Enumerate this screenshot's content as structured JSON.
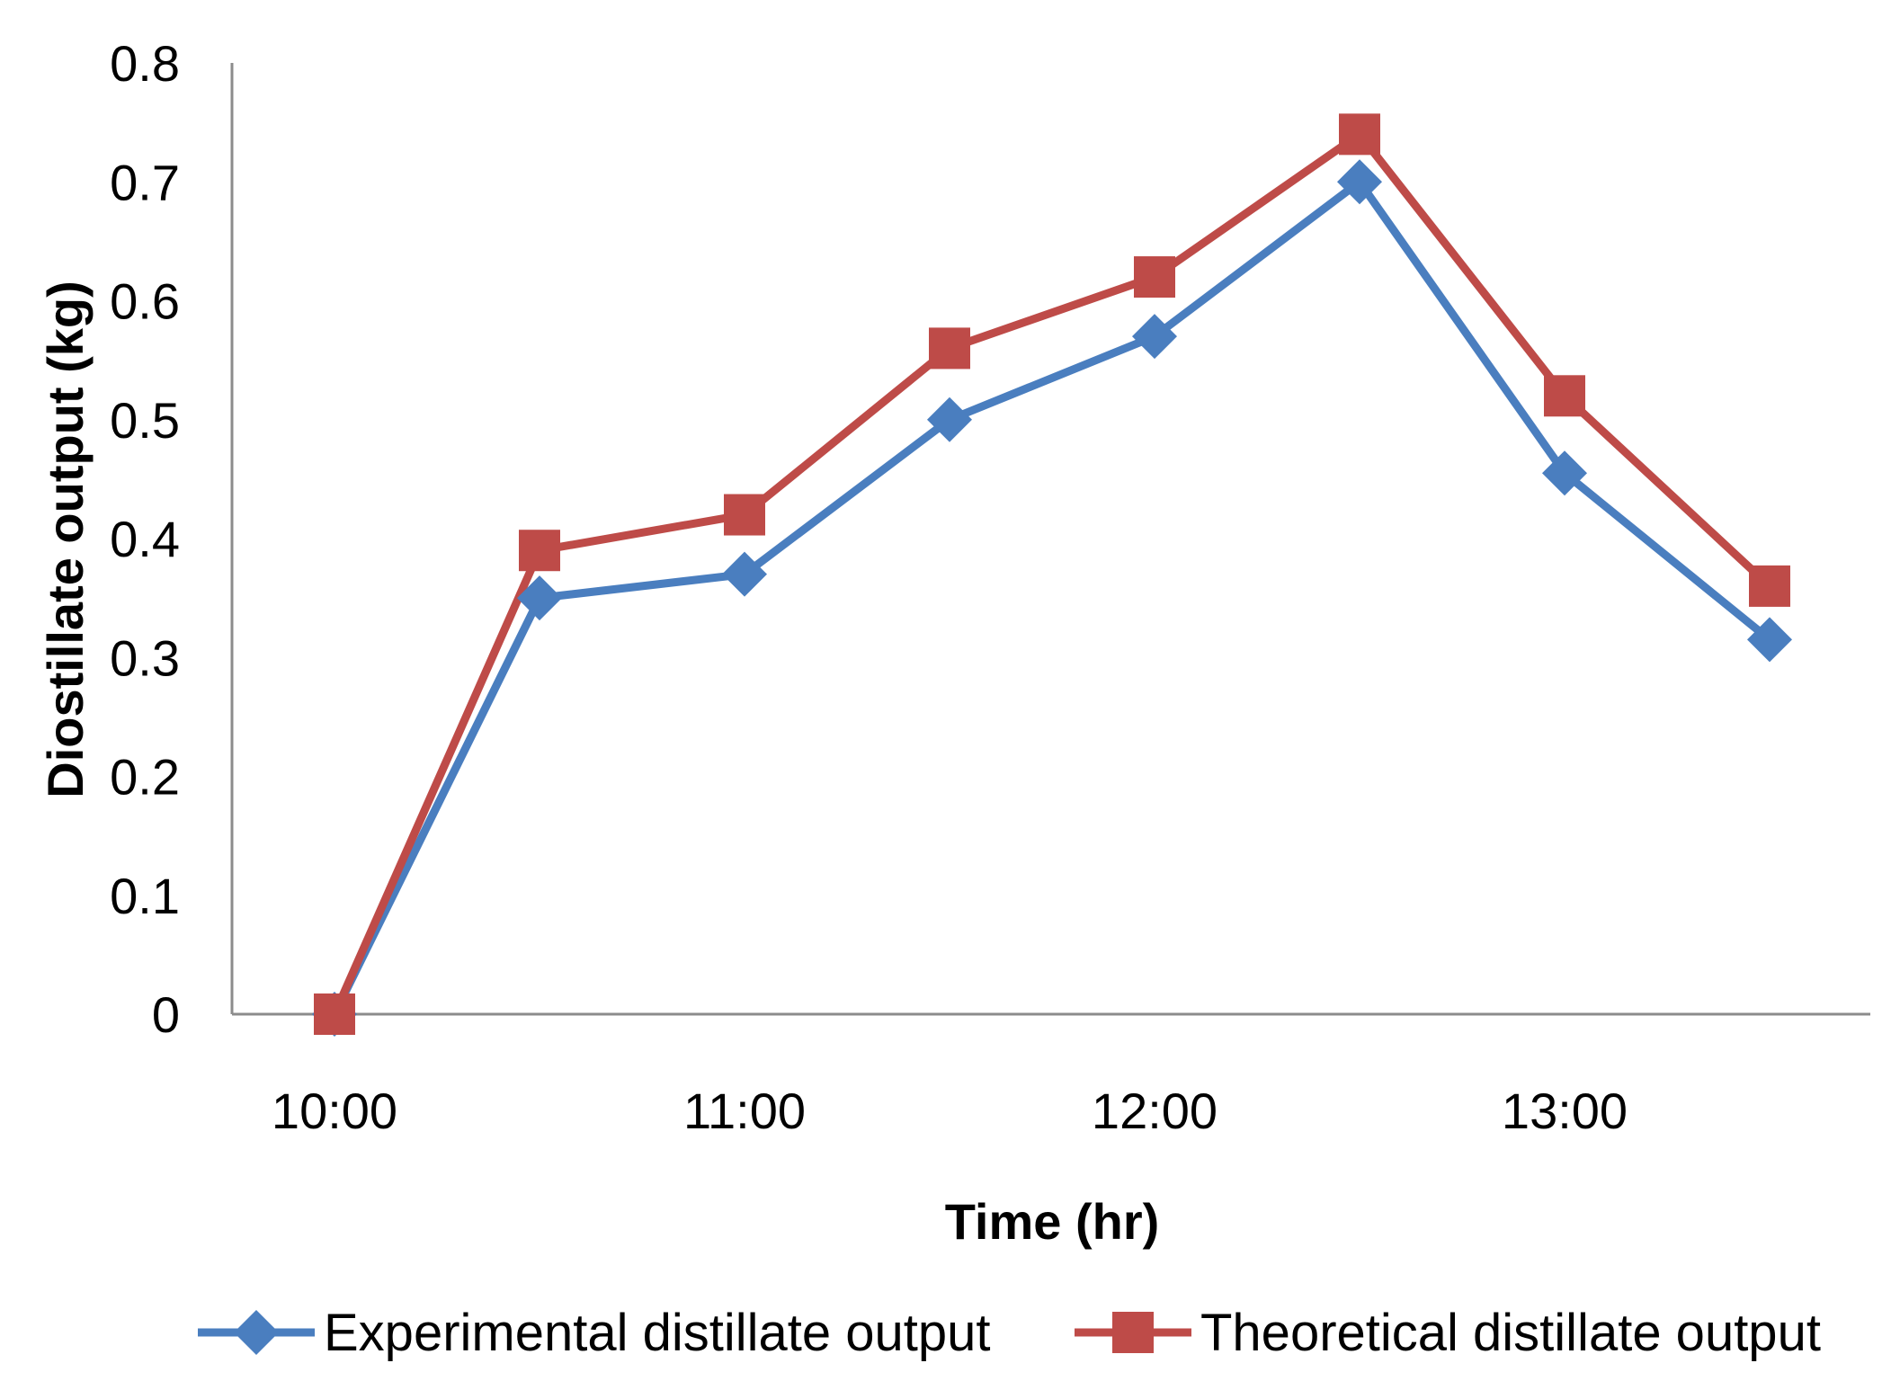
{
  "chart_data": {
    "type": "line",
    "title": "",
    "xlabel": "Time (hr)",
    "ylabel": "Diostillate output  (kg)",
    "x": [
      "10:00",
      "10:30",
      "11:00",
      "11:30",
      "12:00",
      "12:30",
      "13:00",
      "13:30"
    ],
    "x_tick_labels": [
      "10:00",
      "11:00",
      "12:00",
      "13:00"
    ],
    "y_tick_labels": [
      "0",
      "0.1",
      "0.2",
      "0.3",
      "0.4",
      "0.5",
      "0.6",
      "0.7",
      "0.8"
    ],
    "ylim": [
      0,
      0.8
    ],
    "grid": false,
    "legend_position": "bottom",
    "series": [
      {
        "name": "Experimental distillate output",
        "color": "#4a7ebf",
        "marker": "diamond",
        "values": [
          0.0,
          0.35,
          0.37,
          0.5,
          0.57,
          0.7,
          0.455,
          0.315
        ]
      },
      {
        "name": "Theoretical distillate output",
        "color": "#be4b48",
        "marker": "square",
        "values": [
          0.0,
          0.39,
          0.42,
          0.56,
          0.62,
          0.74,
          0.52,
          0.36
        ]
      }
    ]
  }
}
